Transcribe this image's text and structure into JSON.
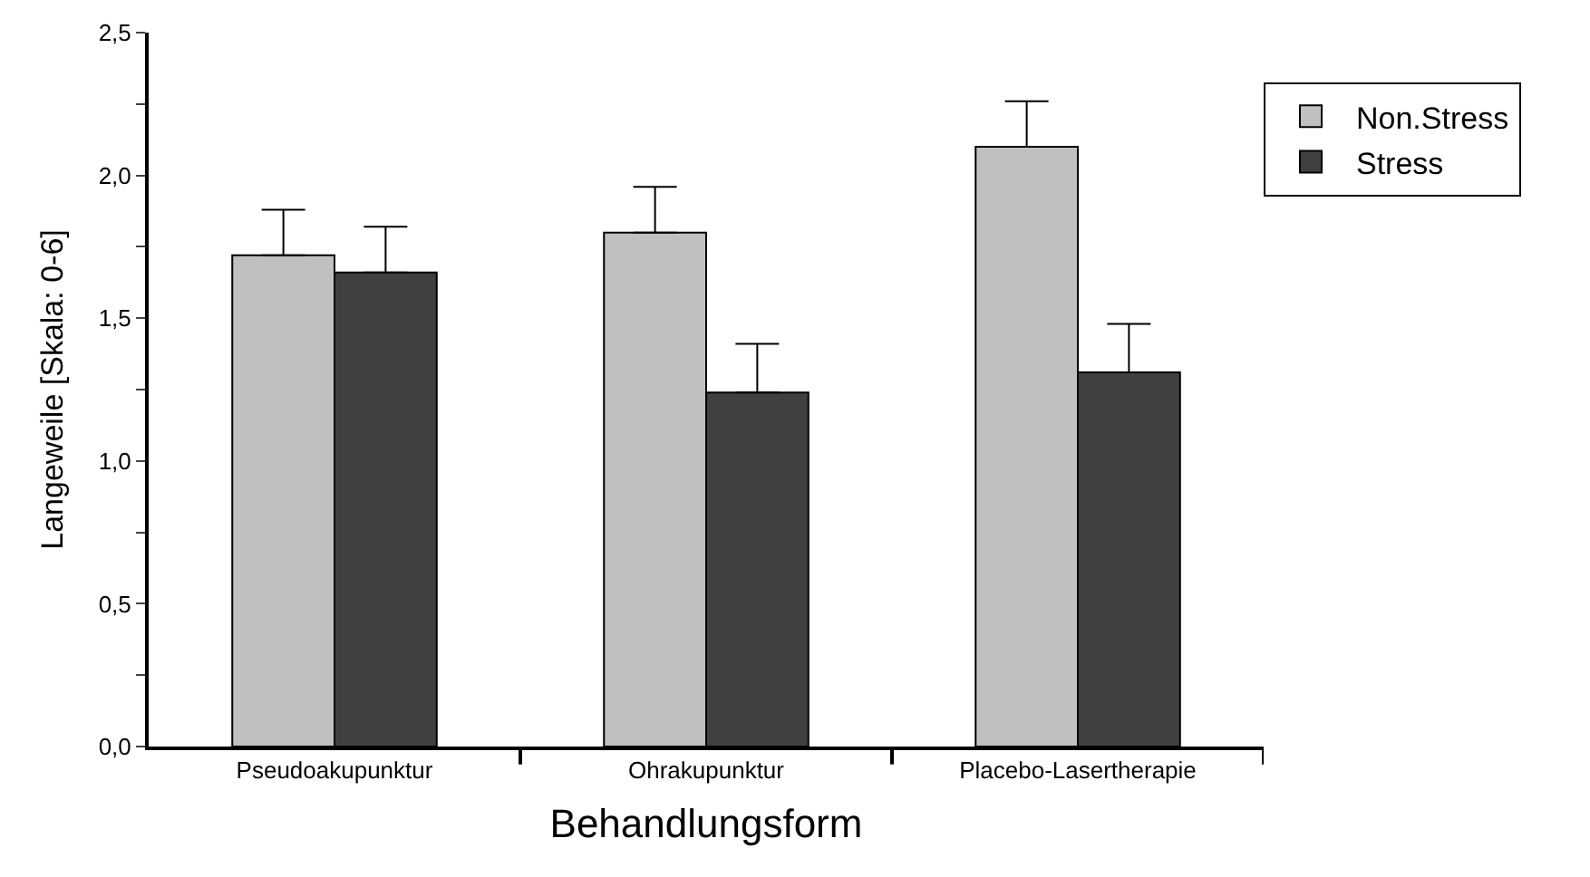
{
  "chart_data": {
    "type": "bar",
    "xlabel": "Behandlungsform",
    "ylabel": "Langeweile [Skala: 0-6]",
    "categories": [
      "Pseudoakupunktur",
      "Ohrakupunktur",
      "Placebo-Lasertherapie"
    ],
    "series": [
      {
        "name": "Non.Stress",
        "color": "#c0c0c0",
        "values": [
          1.72,
          1.8,
          2.1
        ],
        "errors": [
          [
            1.72,
            1.88
          ],
          [
            1.8,
            1.96
          ],
          [
            2.1,
            2.26
          ]
        ]
      },
      {
        "name": "Stress",
        "color": "#404040",
        "values": [
          1.66,
          1.24,
          1.31
        ],
        "errors": [
          [
            1.66,
            1.82
          ],
          [
            1.24,
            1.41
          ],
          [
            1.31,
            1.48
          ]
        ]
      }
    ],
    "ylim": [
      0,
      2.5
    ],
    "yticks": [
      {
        "value": 0,
        "label": "0,0"
      },
      {
        "value": 0.25,
        "label": null
      },
      {
        "value": 0.5,
        "label": "0,5"
      },
      {
        "value": 0.75,
        "label": null
      },
      {
        "value": 1,
        "label": "1,0"
      },
      {
        "value": 1.25,
        "label": null
      },
      {
        "value": 1.5,
        "label": "1,5"
      },
      {
        "value": 1.75,
        "label": null
      },
      {
        "value": 2,
        "label": "2,0"
      },
      {
        "value": 2.25,
        "label": null
      },
      {
        "value": 2.5,
        "label": "2,5"
      }
    ],
    "legend": "top right"
  }
}
